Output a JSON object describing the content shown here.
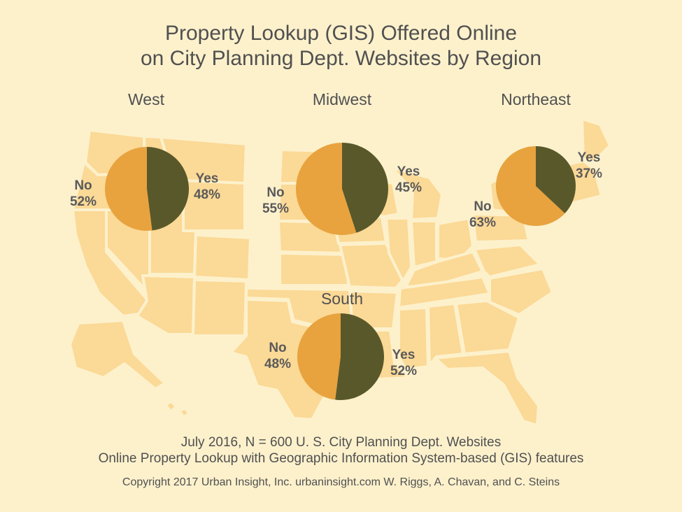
{
  "title_line1": "Property Lookup (GIS) Offered Online",
  "title_line2": "on City Planning Dept. Websites by Region",
  "footer": {
    "line1": "July 2016, N = 600 U. S. City Planning Dept. Websites",
    "line2": "Online Property Lookup with Geographic Information System-based (GIS) features",
    "line3": "Copyright 2017 Urban Insight, Inc. urbaninsight.com  W. Riggs, A. Chavan, and C. Steins"
  },
  "colors": {
    "background": "#fdf1cc",
    "map": "#fbd996",
    "yes": "#59582a",
    "no": "#e8a33e"
  },
  "chart_data": {
    "type": "pie",
    "categories": [
      "Yes",
      "No"
    ],
    "series": [
      {
        "name": "West",
        "values": [
          48,
          52
        ],
        "yes_label": "Yes",
        "yes_pct": "48%",
        "no_label": "No",
        "no_pct": "52%"
      },
      {
        "name": "Midwest",
        "values": [
          45,
          55
        ],
        "yes_label": "Yes",
        "yes_pct": "45%",
        "no_label": "No",
        "no_pct": "55%"
      },
      {
        "name": "Northeast",
        "values": [
          37,
          63
        ],
        "yes_label": "Yes",
        "yes_pct": "37%",
        "no_label": "No",
        "no_pct": "63%"
      },
      {
        "name": "South",
        "values": [
          52,
          48
        ],
        "yes_label": "Yes",
        "yes_pct": "52%",
        "no_label": "No",
        "no_pct": "48%"
      }
    ]
  }
}
